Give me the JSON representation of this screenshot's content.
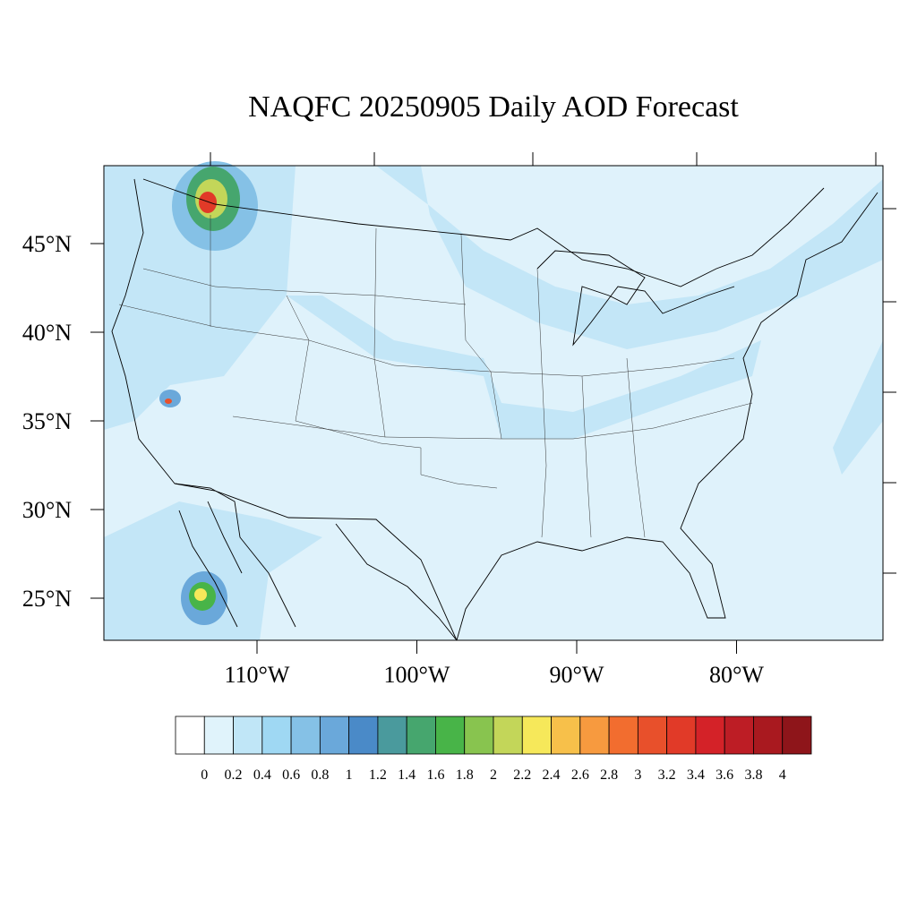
{
  "title": "NAQFC 20250905 Daily AOD Forecast",
  "map": {
    "lat_ticks": [
      {
        "value": 45,
        "label": "45°N"
      },
      {
        "value": 40,
        "label": "40°N"
      },
      {
        "value": 35,
        "label": "35°N"
      },
      {
        "value": 30,
        "label": "30°N"
      },
      {
        "value": 25,
        "label": "25°N"
      }
    ],
    "lon_ticks": [
      {
        "value": 110,
        "label": "110°W"
      },
      {
        "value": 100,
        "label": "100°W"
      },
      {
        "value": 90,
        "label": "90°W"
      },
      {
        "value": 80,
        "label": "80°W"
      }
    ]
  },
  "colorbar": {
    "levels": [
      0,
      0.2,
      0.4,
      0.6,
      0.8,
      1,
      1.2,
      1.4,
      1.6,
      1.8,
      2,
      2.2,
      2.4,
      2.6,
      2.8,
      3,
      3.2,
      3.4,
      3.6,
      3.8,
      4
    ],
    "colors": [
      "#ffffff",
      "#e0f3fb",
      "#c0e6f7",
      "#9fd8f3",
      "#85c1e6",
      "#6aa8da",
      "#4a8ac8",
      "#4a9a9d",
      "#46a66e",
      "#48b448",
      "#88c44f",
      "#c3d659",
      "#f6e85a",
      "#f7c04a",
      "#f79a3f",
      "#f26d2f",
      "#e8502b",
      "#e13a28",
      "#d42228",
      "#bd1d25",
      "#a9191f",
      "#8e151a"
    ]
  }
}
